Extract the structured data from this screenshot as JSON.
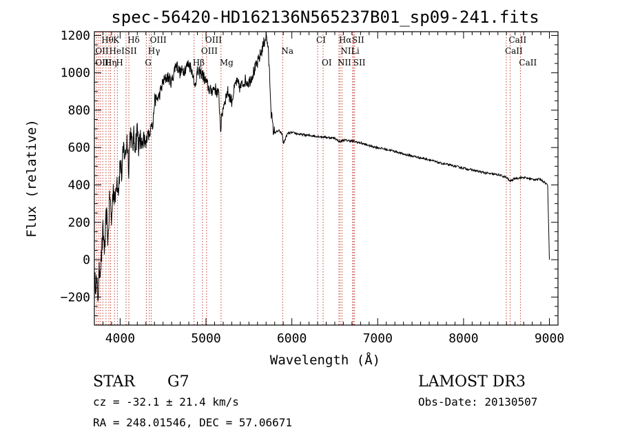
{
  "chart_data": {
    "type": "line",
    "title": "spec-56420-HD162136N565237B01_sp09-241.fits",
    "xlabel": "Wavelength (Å)",
    "ylabel": "Flux (relative)",
    "xlim": [
      3700,
      9100
    ],
    "ylim": [
      -350,
      1220
    ],
    "xticks": [
      4000,
      5000,
      6000,
      7000,
      8000,
      9000
    ],
    "yticks": [
      -200,
      0,
      200,
      400,
      600,
      800,
      1000,
      1200
    ],
    "grid": false,
    "series": [
      {
        "x": [
          3700,
          3720,
          3740,
          3760,
          3780,
          3800,
          3820,
          3840,
          3860,
          3880,
          3900,
          3920,
          3940,
          3960,
          3980,
          4000,
          4020,
          4040,
          4060,
          4080,
          4100,
          4120,
          4140,
          4160,
          4180,
          4200,
          4220,
          4240,
          4260,
          4280,
          4300,
          4320,
          4340,
          4360,
          4380,
          4400,
          4450,
          4500,
          4550,
          4600,
          4650,
          4700,
          4750,
          4800,
          4850,
          4860,
          4900,
          4950,
          5000,
          5050,
          5100,
          5150,
          5170,
          5200,
          5250,
          5300,
          5350,
          5400,
          5450,
          5500,
          5550,
          5600,
          5650,
          5700,
          5720,
          5740,
          5760,
          5780,
          5800,
          5850,
          5890,
          5900,
          5950,
          6000,
          6100,
          6200,
          6300,
          6400,
          6500,
          6560,
          6600,
          6700,
          6800,
          6900,
          7000,
          7100,
          7200,
          7300,
          7400,
          7500,
          7600,
          7700,
          7800,
          7900,
          8000,
          8100,
          8200,
          8300,
          8400,
          8500,
          8540,
          8600,
          8700,
          8800,
          8900,
          8980,
          9000
        ],
        "y": [
          -150,
          -100,
          -200,
          -50,
          0,
          150,
          50,
          250,
          100,
          350,
          200,
          400,
          300,
          450,
          380,
          520,
          450,
          600,
          550,
          650,
          500,
          700,
          600,
          650,
          620,
          700,
          600,
          650,
          580,
          640,
          600,
          700,
          650,
          750,
          700,
          850,
          870,
          950,
          980,
          950,
          1050,
          1000,
          1020,
          1050,
          1000,
          920,
          1000,
          1000,
          950,
          900,
          920,
          880,
          700,
          820,
          900,
          850,
          950,
          920,
          960,
          950,
          1000,
          1050,
          1120,
          1200,
          1150,
          1000,
          790,
          700,
          680,
          690,
          670,
          620,
          675,
          680,
          670,
          665,
          660,
          655,
          650,
          630,
          640,
          635,
          625,
          610,
          600,
          590,
          580,
          565,
          555,
          545,
          535,
          520,
          510,
          500,
          490,
          480,
          470,
          460,
          455,
          440,
          420,
          435,
          440,
          430,
          430,
          400,
          0
        ]
      }
    ],
    "line_labels": [
      {
        "text": "Hθ",
        "x": 3798,
        "row": 1
      },
      {
        "text": "K",
        "x": 3934,
        "row": 1
      },
      {
        "text": "Hδ",
        "x": 4102,
        "row": 1
      },
      {
        "text": "OIII",
        "x": 4363,
        "row": 1
      },
      {
        "text": "OIII",
        "x": 5007,
        "row": 1
      },
      {
        "text": "CI",
        "x": 6300,
        "row": 1
      },
      {
        "text": "Hα",
        "x": 6563,
        "row": 1
      },
      {
        "text": "SII",
        "x": 6717,
        "row": 1
      },
      {
        "text": "CaII",
        "x": 8542,
        "row": 1
      },
      {
        "text": "OII",
        "x": 3727,
        "row": 2
      },
      {
        "text": "HeI",
        "x": 3889,
        "row": 2
      },
      {
        "text": "SII",
        "x": 4069,
        "row": 2
      },
      {
        "text": "Hγ",
        "x": 4340,
        "row": 2
      },
      {
        "text": "OIII",
        "x": 4959,
        "row": 2
      },
      {
        "text": "Na",
        "x": 5893,
        "row": 2
      },
      {
        "text": "NII",
        "x": 6584,
        "row": 2
      },
      {
        "text": "Li",
        "x": 6708,
        "row": 2
      },
      {
        "text": "CaII",
        "x": 8498,
        "row": 2
      },
      {
        "text": "OIII",
        "x": 3727,
        "row": 3
      },
      {
        "text": "Hη",
        "x": 3835,
        "row": 3
      },
      {
        "text": "H",
        "x": 3968,
        "row": 3
      },
      {
        "text": "G",
        "x": 4305,
        "row": 3
      },
      {
        "text": "Hβ",
        "x": 4861,
        "row": 3
      },
      {
        "text": "Mg",
        "x": 5175,
        "row": 3
      },
      {
        "text": "OI",
        "x": 6364,
        "row": 3
      },
      {
        "text": "NII",
        "x": 6548,
        "row": 3
      },
      {
        "text": "SII",
        "x": 6731,
        "row": 3
      },
      {
        "text": "CaII",
        "x": 8662,
        "row": 3
      }
    ],
    "line_markers_x": [
      3727,
      3750,
      3771,
      3798,
      3835,
      3869,
      3889,
      3934,
      3968,
      4069,
      4102,
      4305,
      4340,
      4363,
      4861,
      4959,
      5007,
      5175,
      5893,
      6300,
      6364,
      6548,
      6563,
      6584,
      6708,
      6717,
      6731,
      8498,
      8542,
      8662
    ]
  },
  "footer": {
    "object": "STAR",
    "subclass": "G7",
    "survey": "LAMOST DR3",
    "cz": "cz = -32.1 ± 21.4 km/s",
    "obs_date": "Obs-Date: 20130507",
    "radec": "RA = 248.01546, DEC =  57.06671"
  }
}
